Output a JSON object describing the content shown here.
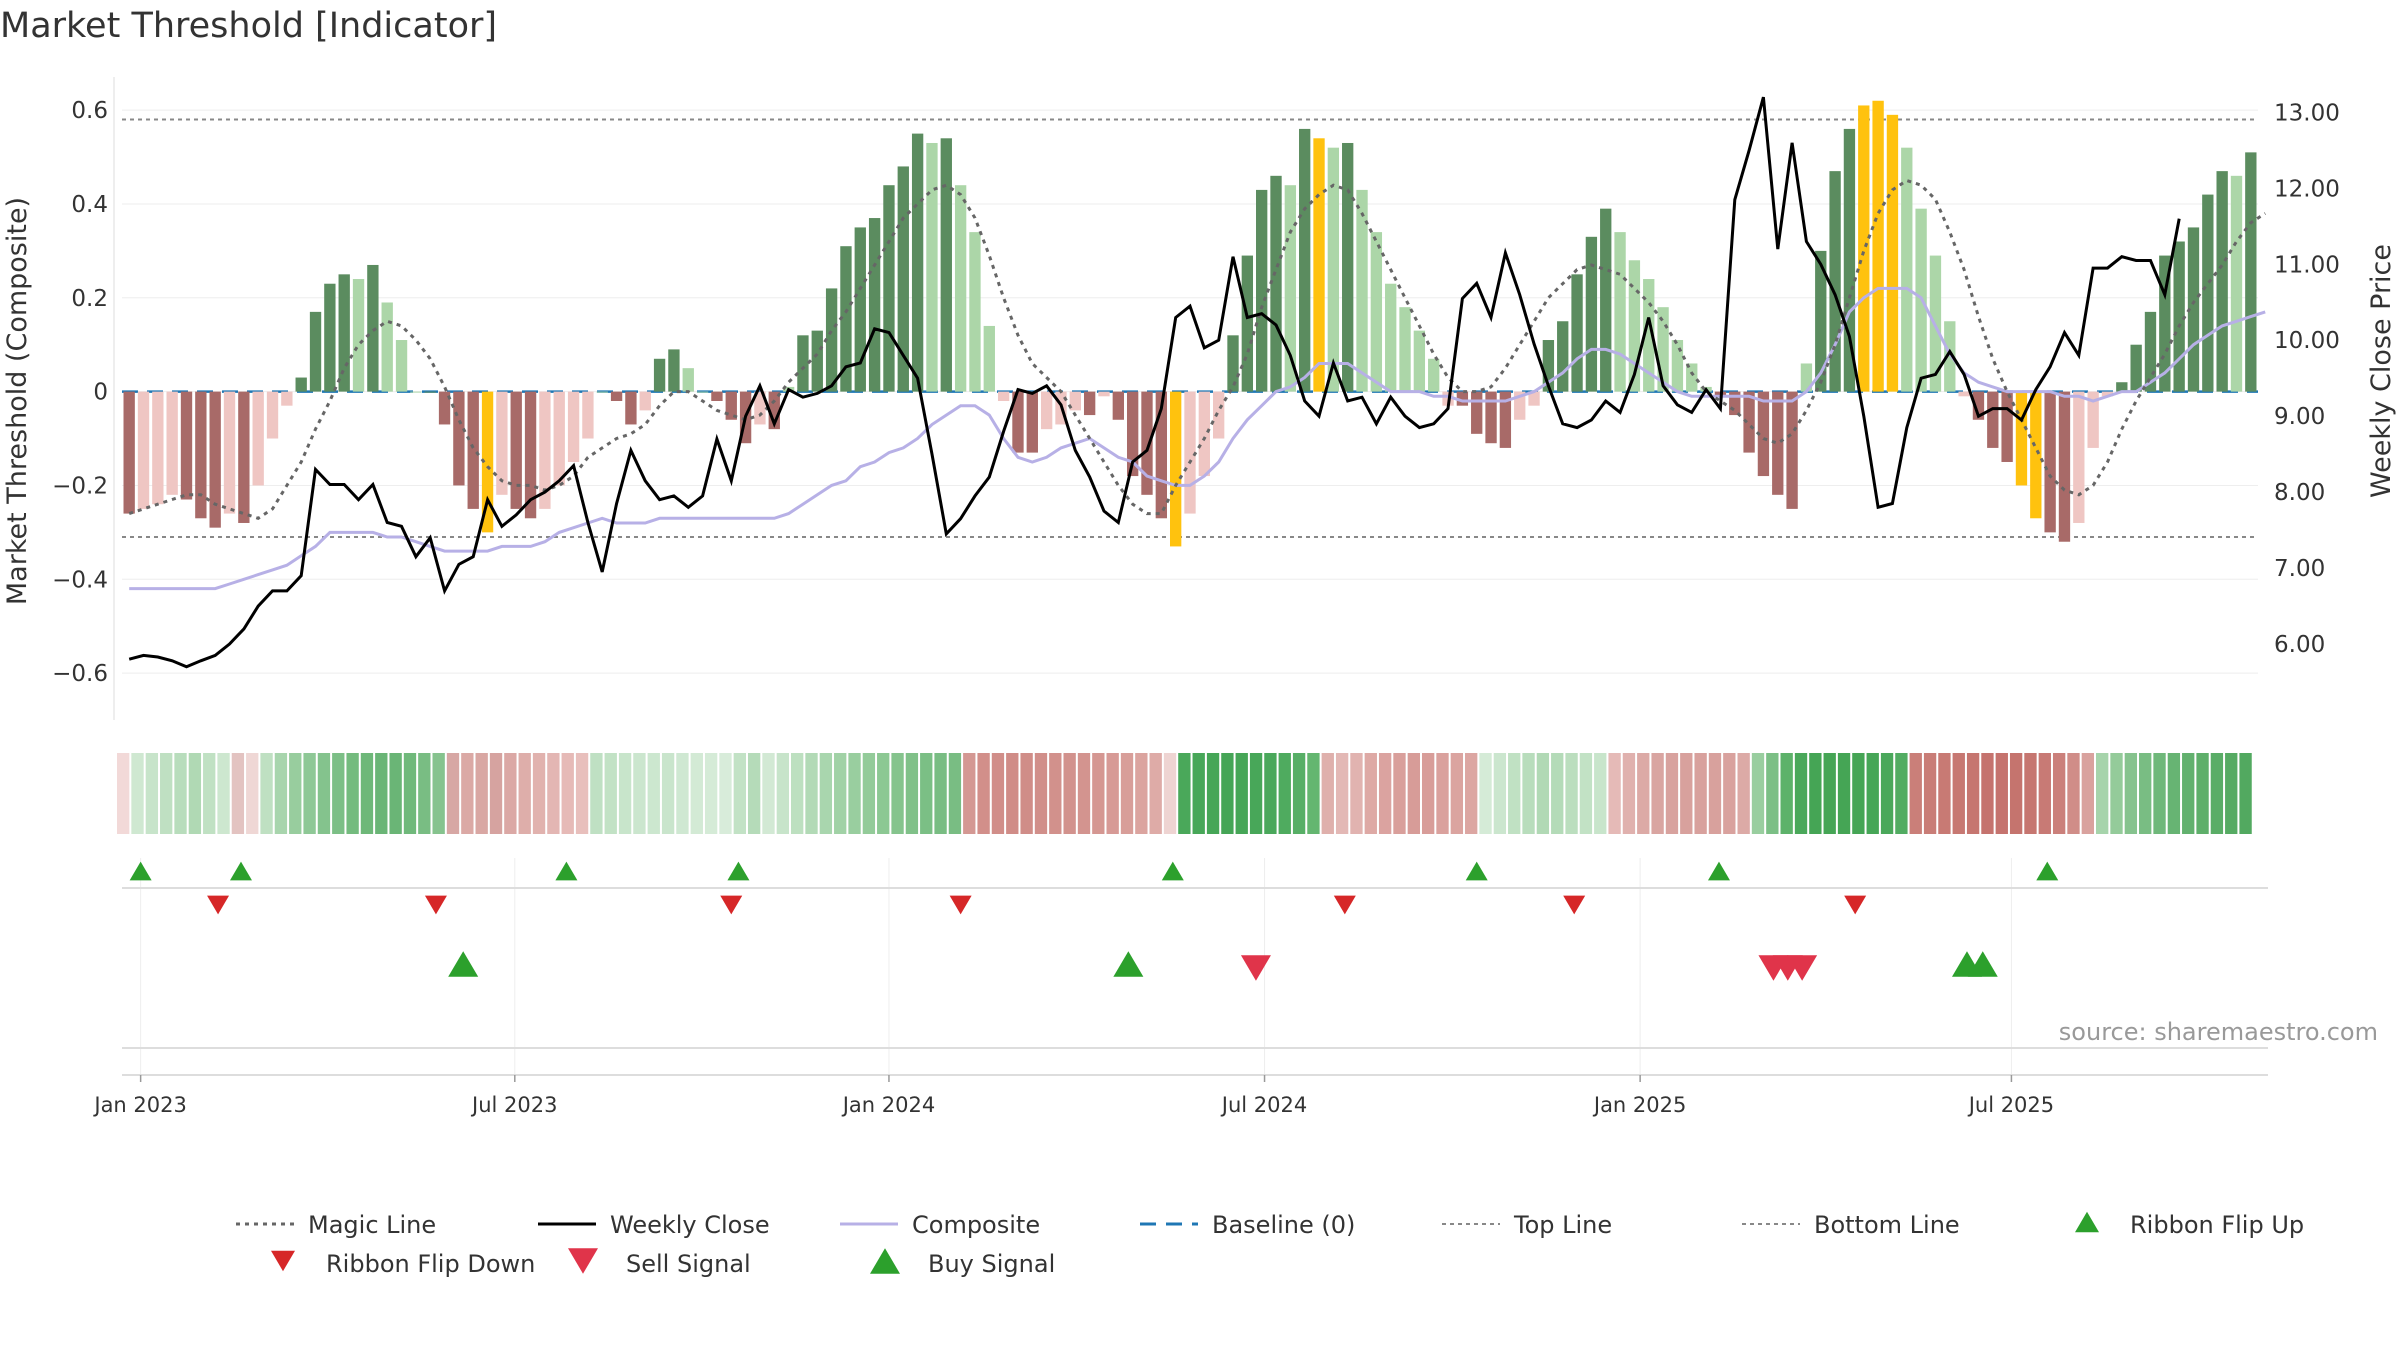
{
  "title": "Market Threshold [Indicator]",
  "source": "source: sharemaestro.com",
  "chart_data": {
    "type": "bar",
    "ylabel_left": "Market Threshold (Composite)",
    "ylabel_right": "Weekly Close Price",
    "left_ylim": [
      -0.7,
      0.66
    ],
    "right_ylim": [
      5.0,
      13.4
    ],
    "left_ticks": [
      {
        "v": 0.6,
        "t": "0.6"
      },
      {
        "v": 0.4,
        "t": "0.4"
      },
      {
        "v": 0.2,
        "t": "0.2"
      },
      {
        "v": 0,
        "t": "0"
      },
      {
        "v": -0.2,
        "t": "−0.2"
      },
      {
        "v": -0.4,
        "t": "−0.4"
      },
      {
        "v": -0.6,
        "t": "−0.6"
      }
    ],
    "right_ticks": [
      {
        "v": 13,
        "t": "13.00"
      },
      {
        "v": 12,
        "t": "12.00"
      },
      {
        "v": 11,
        "t": "11.00"
      },
      {
        "v": 10,
        "t": "10.00"
      },
      {
        "v": 9,
        "t": "9.00"
      },
      {
        "v": 8,
        "t": "8.00"
      },
      {
        "v": 7,
        "t": "7.00"
      },
      {
        "v": 6,
        "t": "6.00"
      }
    ],
    "x_ticks": [
      {
        "w": 0.8,
        "t": "Jan 2023"
      },
      {
        "w": 26.9,
        "t": "Jul 2023"
      },
      {
        "w": 53.0,
        "t": "Jan 2024"
      },
      {
        "w": 79.2,
        "t": "Jul 2024"
      },
      {
        "w": 105.4,
        "t": "Jan 2025"
      },
      {
        "w": 131.3,
        "t": "Jul 2025"
      }
    ],
    "top_line": 0.58,
    "bottom_line": -0.31,
    "baseline": 0,
    "bars": [
      -0.26,
      -0.25,
      -0.24,
      -0.22,
      -0.23,
      -0.27,
      -0.29,
      -0.26,
      -0.28,
      -0.2,
      -0.1,
      -0.03,
      0.03,
      0.17,
      0.23,
      0.25,
      0.24,
      0.27,
      0.19,
      0.11,
      0.0,
      0.0,
      -0.07,
      -0.2,
      -0.25,
      -0.3,
      -0.22,
      -0.25,
      -0.27,
      -0.25,
      -0.2,
      -0.15,
      -0.1,
      0.0,
      -0.02,
      -0.07,
      -0.04,
      0.07,
      0.09,
      0.05,
      0.0,
      -0.02,
      -0.06,
      -0.11,
      -0.07,
      -0.08,
      0.01,
      0.12,
      0.13,
      0.22,
      0.31,
      0.35,
      0.37,
      0.44,
      0.48,
      0.55,
      0.53,
      0.54,
      0.44,
      0.34,
      0.14,
      -0.02,
      -0.13,
      -0.13,
      -0.08,
      -0.07,
      -0.04,
      -0.05,
      -0.01,
      -0.06,
      -0.18,
      -0.22,
      -0.27,
      -0.33,
      -0.26,
      -0.18,
      -0.1,
      0.12,
      0.29,
      0.43,
      0.46,
      0.44,
      0.56,
      0.54,
      0.52,
      0.53,
      0.43,
      0.34,
      0.23,
      0.18,
      0.13,
      0.07,
      -0.03,
      -0.03,
      -0.09,
      -0.11,
      -0.12,
      -0.06,
      -0.03,
      0.11,
      0.15,
      0.25,
      0.33,
      0.39,
      0.34,
      0.28,
      0.24,
      0.18,
      0.11,
      0.06,
      0.01,
      -0.01,
      -0.05,
      -0.13,
      -0.18,
      -0.22,
      -0.25,
      0.06,
      0.3,
      0.47,
      0.56,
      0.61,
      0.62,
      0.59,
      0.52,
      0.39,
      0.29,
      0.15,
      -0.01,
      -0.06,
      -0.12,
      -0.15,
      -0.2,
      -0.27,
      -0.3,
      -0.32,
      -0.28,
      -0.12,
      -0.01,
      0.02,
      0.1,
      0.17,
      0.29,
      0.32,
      0.35,
      0.42,
      0.47,
      0.46,
      0.51
    ],
    "gold_bars": [
      25,
      73,
      83,
      121,
      122,
      123,
      132,
      133
    ],
    "price": [
      5.8,
      5.85,
      5.83,
      5.78,
      5.7,
      5.78,
      5.85,
      6.0,
      6.2,
      6.5,
      6.7,
      6.7,
      6.9,
      8.3,
      8.1,
      8.1,
      7.9,
      8.1,
      7.6,
      7.55,
      7.15,
      7.4,
      6.7,
      7.05,
      7.15,
      7.9,
      7.55,
      7.7,
      7.9,
      8.0,
      8.15,
      8.35,
      7.6,
      6.95,
      7.85,
      8.55,
      8.15,
      7.9,
      7.95,
      7.8,
      7.95,
      8.7,
      8.15,
      9.0,
      9.4,
      8.9,
      9.35,
      9.25,
      9.3,
      9.4,
      9.65,
      9.7,
      10.15,
      10.1,
      9.8,
      9.5,
      8.5,
      7.45,
      7.65,
      7.95,
      8.2,
      8.8,
      9.35,
      9.3,
      9.4,
      9.15,
      8.55,
      8.2,
      7.75,
      7.6,
      8.4,
      8.55,
      9.1,
      10.3,
      10.45,
      9.9,
      10.0,
      11.1,
      10.3,
      10.35,
      10.2,
      9.8,
      9.2,
      9.0,
      9.7,
      9.2,
      9.25,
      8.9,
      9.25,
      9.0,
      8.85,
      8.9,
      9.1,
      10.55,
      10.75,
      10.3,
      11.15,
      10.6,
      9.95,
      9.4,
      8.9,
      8.85,
      8.95,
      9.2,
      9.05,
      9.55,
      10.3,
      9.4,
      9.15,
      9.05,
      9.35,
      9.1,
      11.85,
      12.5,
      13.2,
      11.2,
      12.6,
      11.3,
      11.0,
      10.6,
      10.05,
      9.0,
      7.8,
      7.85,
      8.85,
      9.5,
      9.55,
      9.85,
      9.55,
      9.0,
      9.1,
      9.1,
      8.95,
      9.35,
      9.65,
      10.1,
      9.8,
      10.95,
      10.95,
      11.1,
      11.05,
      11.05,
      10.6,
      11.6
    ],
    "composite_line": [
      -0.42,
      -0.42,
      -0.42,
      -0.42,
      -0.42,
      -0.42,
      -0.42,
      -0.41,
      -0.4,
      -0.39,
      -0.38,
      -0.37,
      -0.35,
      -0.33,
      -0.3,
      -0.3,
      -0.3,
      -0.3,
      -0.31,
      -0.31,
      -0.32,
      -0.33,
      -0.34,
      -0.34,
      -0.34,
      -0.34,
      -0.33,
      -0.33,
      -0.33,
      -0.32,
      -0.3,
      -0.29,
      -0.28,
      -0.27,
      -0.28,
      -0.28,
      -0.28,
      -0.27,
      -0.27,
      -0.27,
      -0.27,
      -0.27,
      -0.27,
      -0.27,
      -0.27,
      -0.27,
      -0.26,
      -0.24,
      -0.22,
      -0.2,
      -0.19,
      -0.16,
      -0.15,
      -0.13,
      -0.12,
      -0.1,
      -0.07,
      -0.05,
      -0.03,
      -0.03,
      -0.05,
      -0.1,
      -0.14,
      -0.15,
      -0.14,
      -0.12,
      -0.11,
      -0.1,
      -0.12,
      -0.14,
      -0.15,
      -0.18,
      -0.19,
      -0.2,
      -0.2,
      -0.18,
      -0.15,
      -0.1,
      -0.06,
      -0.03,
      0.0,
      0.01,
      0.03,
      0.06,
      0.06,
      0.06,
      0.04,
      0.02,
      0.0,
      0.0,
      0.0,
      -0.01,
      -0.01,
      -0.02,
      -0.02,
      -0.02,
      -0.02,
      -0.01,
      0.0,
      0.02,
      0.04,
      0.07,
      0.09,
      0.09,
      0.08,
      0.06,
      0.04,
      0.02,
      0.0,
      -0.01,
      -0.01,
      -0.01,
      -0.01,
      -0.01,
      -0.02,
      -0.02,
      -0.02,
      0.0,
      0.04,
      0.1,
      0.17,
      0.2,
      0.22,
      0.22,
      0.22,
      0.2,
      0.14,
      0.08,
      0.04,
      0.02,
      0.01,
      0.0,
      0.0,
      0.0,
      0.0,
      -0.01,
      -0.01,
      -0.02,
      -0.01,
      0.0,
      0.0,
      0.02,
      0.04,
      0.07,
      0.1,
      0.12,
      0.14,
      0.15,
      0.16,
      0.17
    ],
    "magic_line": [
      -0.26,
      -0.25,
      -0.24,
      -0.23,
      -0.22,
      -0.22,
      -0.24,
      -0.25,
      -0.26,
      -0.27,
      -0.25,
      -0.2,
      -0.15,
      -0.08,
      -0.02,
      0.05,
      0.1,
      0.13,
      0.15,
      0.14,
      0.11,
      0.07,
      0.01,
      -0.06,
      -0.12,
      -0.16,
      -0.19,
      -0.2,
      -0.2,
      -0.21,
      -0.2,
      -0.18,
      -0.14,
      -0.12,
      -0.1,
      -0.09,
      -0.07,
      -0.03,
      0.0,
      0.0,
      -0.02,
      -0.04,
      -0.05,
      -0.06,
      -0.05,
      -0.02,
      0.02,
      0.05,
      0.08,
      0.13,
      0.17,
      0.22,
      0.27,
      0.32,
      0.37,
      0.4,
      0.43,
      0.44,
      0.42,
      0.37,
      0.29,
      0.2,
      0.12,
      0.06,
      0.03,
      0.0,
      -0.05,
      -0.1,
      -0.15,
      -0.2,
      -0.24,
      -0.26,
      -0.26,
      -0.2,
      -0.15,
      -0.1,
      -0.04,
      0.01,
      0.08,
      0.18,
      0.26,
      0.34,
      0.39,
      0.42,
      0.44,
      0.43,
      0.38,
      0.32,
      0.26,
      0.2,
      0.14,
      0.08,
      0.03,
      0.0,
      0.0,
      0.01,
      0.05,
      0.1,
      0.15,
      0.2,
      0.23,
      0.26,
      0.27,
      0.26,
      0.25,
      0.22,
      0.19,
      0.15,
      0.1,
      0.04,
      0.0,
      -0.02,
      -0.04,
      -0.07,
      -0.1,
      -0.11,
      -0.09,
      -0.04,
      0.02,
      0.1,
      0.2,
      0.3,
      0.38,
      0.43,
      0.45,
      0.44,
      0.41,
      0.34,
      0.26,
      0.16,
      0.07,
      0.0,
      -0.06,
      -0.12,
      -0.18,
      -0.21,
      -0.22,
      -0.2,
      -0.15,
      -0.08,
      -0.02,
      0.03,
      0.08,
      0.14,
      0.19,
      0.23,
      0.27,
      0.32,
      0.36,
      0.38
    ],
    "ribbon_colors": [
      "#f2d9d8",
      "#cfe8d1",
      "#c7e4ca",
      "#bfe0c2",
      "#b8ddbc",
      "#b0d9b4",
      "#c0e1c3",
      "#cde7cf",
      "#e3c3c1",
      "#efd7d5",
      "#bfe0c2",
      "#a8d5ad",
      "#98cd9e",
      "#8ec896",
      "#84c38d",
      "#7cbf86",
      "#74bb7e",
      "#6eb879",
      "#6ab576",
      "#6ab576",
      "#70b97b",
      "#79bd83",
      "#86c38e",
      "#d7a7a4",
      "#dba9a5",
      "#d9a7a3",
      "#d6a3a0",
      "#dba8a5",
      "#deaeaa",
      "#e1b2ae",
      "#e3b6b3",
      "#e6bab7",
      "#e8bfbc",
      "#bfe0c3",
      "#c2e2c5",
      "#c8e5cb",
      "#cbe6ce",
      "#cce7cf",
      "#c9e5cc",
      "#cfe8d2",
      "#d3ead5",
      "#d5ebd7",
      "#d8ecda",
      "#c2e2c5",
      "#b5dbb9",
      "#d2e9d4",
      "#c7e4ca",
      "#bde0c0",
      "#b2dab6",
      "#a9d6ae",
      "#a1d2a6",
      "#99ce9f",
      "#93cb99",
      "#8cc893",
      "#85c48d",
      "#80c189",
      "#7bbf85",
      "#79bd83",
      "#79bd83",
      "#d49893",
      "#d28f8a",
      "#d18e89",
      "#d08c87",
      "#d08d88",
      "#d18f8a",
      "#d2918c",
      "#d2928d",
      "#d3948f",
      "#d59792",
      "#d79a96",
      "#d89e99",
      "#dba49f",
      "#deaba7",
      "#eed4d2",
      "#4aa85a",
      "#47a758",
      "#46a657",
      "#45a556",
      "#46a657",
      "#48a759",
      "#4aa85b",
      "#4fab5f",
      "#57af66",
      "#64b670",
      "#dfb0ac",
      "#e3b8b5",
      "#e1b3b0",
      "#dea9a5",
      "#dba3a0",
      "#d99f9b",
      "#d79c98",
      "#d89d99",
      "#daa19d",
      "#dba4a0",
      "#dca6a2",
      "#d5ebd7",
      "#cbe6ce",
      "#c0e1c3",
      "#b8ddbc",
      "#b1d9b5",
      "#b4dbb8",
      "#bbdebe",
      "#c2e2c5",
      "#c8e5cb",
      "#e5bab7",
      "#e0b1ae",
      "#dcaaa6",
      "#d9a5a1",
      "#d8a29e",
      "#d8a19d",
      "#d8a19d",
      "#d8a19d",
      "#d9a29e",
      "#dcaaa6",
      "#99ce9f",
      "#7bbf85",
      "#5db26a",
      "#4aa85a",
      "#45a555",
      "#45a555",
      "#45a555",
      "#45a555",
      "#46a657",
      "#4aa85b",
      "#52ac62",
      "#ca7f79",
      "#c97d77",
      "#c87a74",
      "#c77872",
      "#c67670",
      "#c5736e",
      "#c5736e",
      "#c5746e",
      "#c67670",
      "#c87a75",
      "#cb807b",
      "#d08d88",
      "#d9a29e",
      "#a6d4ab",
      "#94cb9a",
      "#86c38e",
      "#79bd83",
      "#6fb87a",
      "#67b473",
      "#62b16e",
      "#5eaf6a",
      "#5aad67",
      "#56ab63",
      "#52a960"
    ],
    "ribbon_flip_up": [
      0.8,
      7.8,
      30.5,
      42.5,
      72.8,
      94.0,
      110.9,
      133.8
    ],
    "ribbon_flip_down": [
      6.2,
      21.4,
      42.0,
      58.0,
      84.8,
      100.8,
      120.4
    ],
    "buy_signal": [
      23.3,
      69.7,
      128.2,
      129.3
    ],
    "sell_signal": [
      78.6,
      114.7,
      115.7,
      116.7
    ],
    "legend": [
      {
        "label": "Magic Line",
        "kind": "dotted",
        "color": "#666666"
      },
      {
        "label": "Weekly Close",
        "kind": "solid",
        "color": "#000000"
      },
      {
        "label": "Composite",
        "kind": "solid",
        "color": "#b7b0e6"
      },
      {
        "label": "Baseline (0)",
        "kind": "dashed",
        "color": "#1f77b4"
      },
      {
        "label": "Top Line",
        "kind": "dotted-thin",
        "color": "#888888"
      },
      {
        "label": "Bottom Line",
        "kind": "dotted-thin",
        "color": "#888888"
      },
      {
        "label": "Ribbon Flip Up",
        "kind": "tri-up",
        "color": "#2ca02c"
      },
      {
        "label": "Ribbon Flip Down",
        "kind": "tri-down",
        "color": "#d62728"
      },
      {
        "label": "Sell Signal",
        "kind": "tri-down-big",
        "color": "#e0344a"
      },
      {
        "label": "Buy Signal",
        "kind": "tri-up-big",
        "color": "#2ca02c"
      }
    ],
    "colors": {
      "pos_strong": "#5b8c5f",
      "pos_light": "#acd6a8",
      "neg_strong": "#a86a68",
      "neg_light": "#efc6c3",
      "gold": "#ffc20e",
      "magic": "#666666",
      "price": "#000000",
      "composite": "#b7b0e6",
      "baseline": "#1f77b4"
    }
  }
}
